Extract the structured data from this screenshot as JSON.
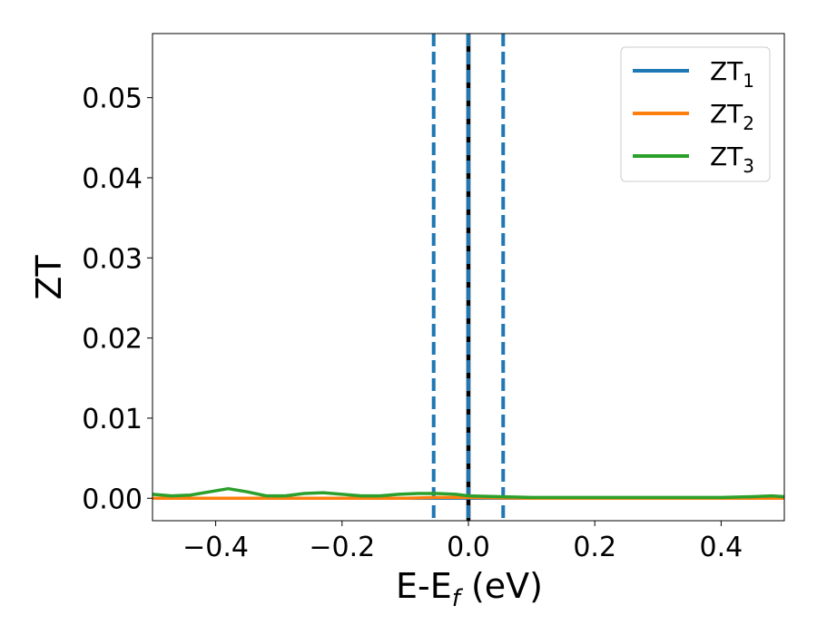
{
  "chart_data": {
    "type": "line",
    "xlabel": "E-E",
    "xlabel_sub": "f",
    "xlabel_suffix": " (eV)",
    "ylabel": "ZT",
    "xlim": [
      -0.5,
      0.5
    ],
    "ylim": [
      -0.0028,
      0.058
    ],
    "xticks": [
      -0.4,
      -0.2,
      0.0,
      0.2,
      0.4
    ],
    "xtick_labels": [
      "−0.4",
      "−0.2",
      "0.0",
      "0.2",
      "0.4"
    ],
    "yticks": [
      0.0,
      0.01,
      0.02,
      0.03,
      0.04,
      0.05
    ],
    "ytick_labels": [
      "0.00",
      "0.01",
      "0.02",
      "0.03",
      "0.04",
      "0.05"
    ],
    "grid": false,
    "legend_position": "top-right",
    "vlines": [
      {
        "x": -0.055,
        "style": "dashed",
        "color": "#1f77b4"
      },
      {
        "x": 0.055,
        "style": "dashed",
        "color": "#1f77b4"
      },
      {
        "x": 0.0,
        "style": "solid",
        "color": "#000000"
      },
      {
        "x": 0.0,
        "style": "dashed",
        "color": "#1f77b4"
      }
    ],
    "series": [
      {
        "name": "ZT",
        "name_sub": "1",
        "color": "#1f77b4",
        "x": [
          -0.5,
          0.5
        ],
        "y": [
          0.0,
          0.0
        ]
      },
      {
        "name": "ZT",
        "name_sub": "2",
        "color": "#ff7f0e",
        "x": [
          -0.5,
          -0.4,
          -0.3,
          -0.2,
          -0.1,
          -0.05,
          0.0,
          0.1,
          0.2,
          0.3,
          0.4,
          0.5
        ],
        "y": [
          0.0,
          0.0,
          0.0,
          0.0,
          0.0,
          0.0001,
          0.0001,
          0.0,
          0.0,
          0.0,
          0.0,
          0.0
        ]
      },
      {
        "name": "ZT",
        "name_sub": "3",
        "color": "#2ca02c",
        "x": [
          -0.5,
          -0.47,
          -0.44,
          -0.41,
          -0.38,
          -0.35,
          -0.32,
          -0.29,
          -0.26,
          -0.23,
          -0.2,
          -0.17,
          -0.14,
          -0.11,
          -0.08,
          -0.05,
          -0.02,
          0.0,
          0.05,
          0.1,
          0.15,
          0.2,
          0.25,
          0.3,
          0.35,
          0.4,
          0.45,
          0.48,
          0.5
        ],
        "y": [
          0.0005,
          0.0003,
          0.0004,
          0.0008,
          0.0012,
          0.0008,
          0.0003,
          0.0003,
          0.0006,
          0.0007,
          0.0005,
          0.0003,
          0.0003,
          0.0005,
          0.0006,
          0.0006,
          0.0005,
          0.0003,
          0.0002,
          0.0001,
          0.0001,
          0.0001,
          0.0001,
          0.0001,
          0.0001,
          0.0001,
          0.0002,
          0.0003,
          0.0002
        ]
      }
    ]
  }
}
